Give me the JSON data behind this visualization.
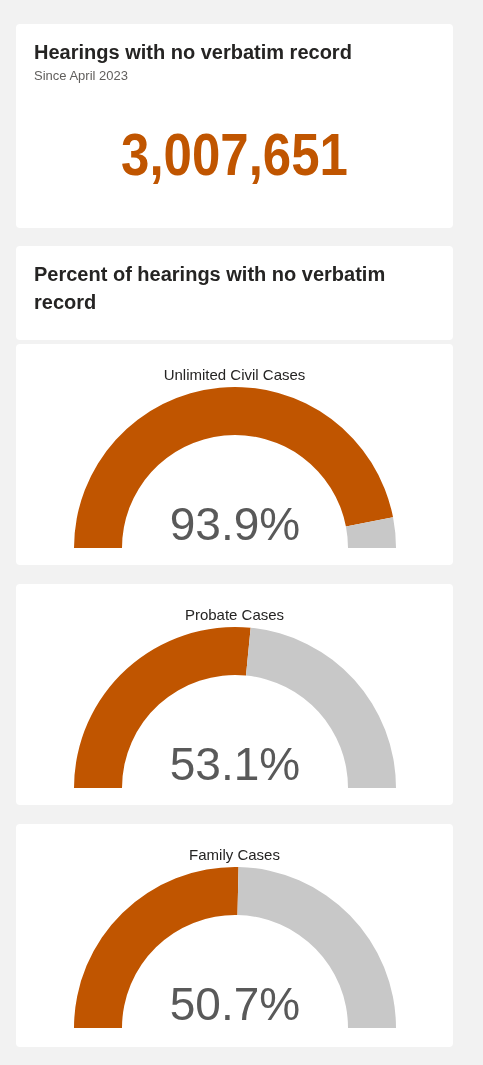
{
  "chart_data": [
    {
      "type": "other",
      "title": "Hearings with no verbatim record",
      "subtitle": "Since April 2023",
      "annotations": [
        "3,007,651"
      ]
    },
    {
      "type": "other",
      "title": "Percent of hearings with no verbatim record"
    },
    {
      "type": "donut",
      "title": "Unlimited Civil Cases",
      "categories": [
        null,
        null
      ],
      "values": [
        93.9,
        6.1
      ],
      "colors": [
        "#c05500",
        "#c8c8c8"
      ],
      "value_labels": [
        "93.9%",
        null
      ]
    },
    {
      "type": "donut",
      "title": "Probate Cases",
      "categories": [
        null,
        null
      ],
      "values": [
        53.1,
        46.9
      ],
      "colors": [
        "#c05500",
        "#c8c8c8"
      ],
      "value_labels": [
        "53.1%",
        null
      ]
    },
    {
      "type": "donut",
      "title": "Family Cases",
      "categories": [
        null,
        null
      ],
      "values": [
        50.7,
        49.3
      ],
      "colors": [
        "#c05500",
        "#c8c8c8"
      ],
      "value_labels": [
        "50.7%",
        null
      ]
    }
  ]
}
